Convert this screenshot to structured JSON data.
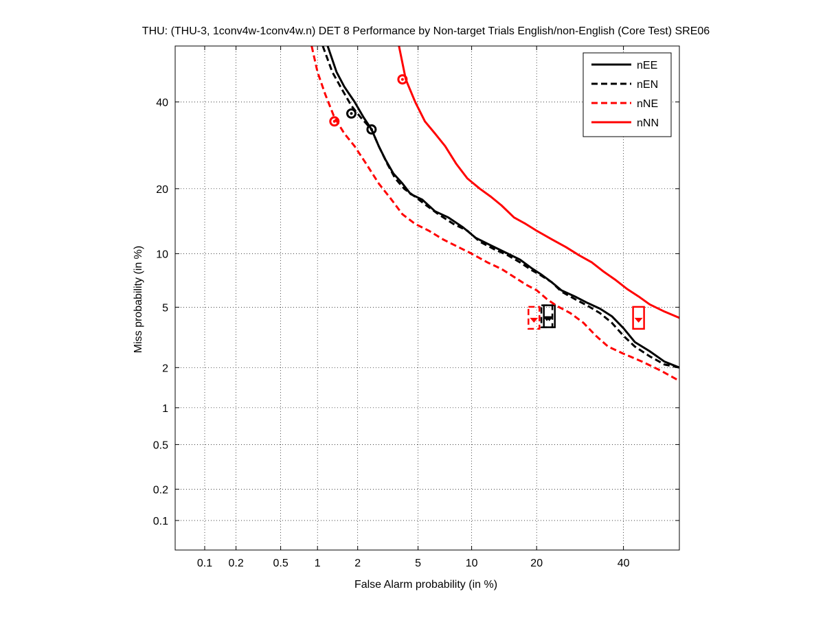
{
  "chart_data": {
    "type": "line",
    "title": "THU: (THU-3, 1conv4w-1conv4w.n) DET 8 Performance by Non-target Trials English/non-English (Core Test) SRE06",
    "xlabel": "False Alarm probability (in %)",
    "ylabel": "Miss probability (in %)",
    "x_scale": "normal-deviate (probit)",
    "y_scale": "normal-deviate (probit)",
    "xlim": [
      0.05,
      55
    ],
    "ylim": [
      0.05,
      55
    ],
    "x_ticks": [
      0.1,
      0.2,
      0.5,
      1,
      2,
      5,
      10,
      20,
      40
    ],
    "y_ticks": [
      0.1,
      0.2,
      0.5,
      1,
      2,
      5,
      10,
      20,
      40
    ],
    "x_tick_labels": [
      "0.1",
      "0.2",
      "0.5",
      "1",
      "2",
      "5",
      "10",
      "20",
      "40"
    ],
    "y_tick_labels": [
      "0.1",
      "0.2",
      "0.5",
      "1",
      "2",
      "5",
      "10",
      "20",
      "40"
    ],
    "grid": true,
    "legend_position": "top-right",
    "series": [
      {
        "name": "nEE",
        "color": "#000000",
        "dash": "solid",
        "points": [
          [
            1.2,
            55
          ],
          [
            1.4,
            48
          ],
          [
            1.6,
            44
          ],
          [
            1.9,
            40
          ],
          [
            2.2,
            36
          ],
          [
            2.5,
            33
          ],
          [
            2.8,
            29
          ],
          [
            3.1,
            26
          ],
          [
            3.5,
            23
          ],
          [
            4,
            21
          ],
          [
            4.5,
            19
          ],
          [
            5.3,
            18
          ],
          [
            6.3,
            16
          ],
          [
            7.5,
            15
          ],
          [
            9,
            13.5
          ],
          [
            10.5,
            12
          ],
          [
            12.5,
            11
          ],
          [
            15,
            10
          ],
          [
            17,
            9.3
          ],
          [
            19,
            8.4
          ],
          [
            21,
            7.7
          ],
          [
            23,
            7
          ],
          [
            25,
            6.3
          ],
          [
            28,
            5.8
          ],
          [
            31,
            5.3
          ],
          [
            34,
            4.9
          ],
          [
            37,
            4.4
          ],
          [
            40,
            3.7
          ],
          [
            43,
            3
          ],
          [
            47,
            2.6
          ],
          [
            51,
            2.2
          ],
          [
            55,
            2
          ]
        ],
        "act_dcf": [
          2.5,
          33
        ],
        "min_dcf": [
          22.5,
          4.4
        ]
      },
      {
        "name": "nEN",
        "color": "#000000",
        "dash": "dashed",
        "points": [
          [
            1.1,
            55
          ],
          [
            1.3,
            48
          ],
          [
            1.5,
            44
          ],
          [
            1.8,
            39
          ],
          [
            2.1,
            36
          ],
          [
            2.5,
            33
          ],
          [
            2.8,
            29
          ],
          [
            3.2,
            25
          ],
          [
            3.6,
            22
          ],
          [
            4.1,
            20
          ],
          [
            4.8,
            18.5
          ],
          [
            5.6,
            17
          ],
          [
            6.6,
            15.5
          ],
          [
            8,
            14
          ],
          [
            9.5,
            13
          ],
          [
            11,
            11.5
          ],
          [
            13,
            10.5
          ],
          [
            15,
            9.8
          ],
          [
            17,
            9
          ],
          [
            19,
            8.2
          ],
          [
            21,
            7.6
          ],
          [
            23,
            7
          ],
          [
            25,
            6.2
          ],
          [
            28,
            5.6
          ],
          [
            31,
            5.1
          ],
          [
            34,
            4.6
          ],
          [
            37,
            4
          ],
          [
            40,
            3.3
          ],
          [
            43,
            2.8
          ],
          [
            47,
            2.4
          ],
          [
            51,
            2.1
          ],
          [
            55,
            2
          ]
        ],
        "act_dcf": [
          1.8,
          37
        ],
        "min_dcf": [
          22,
          4.4
        ]
      },
      {
        "name": "nNE",
        "color": "#ff0000",
        "dash": "dashed",
        "points": [
          [
            0.9,
            55
          ],
          [
            1,
            48
          ],
          [
            1.15,
            42
          ],
          [
            1.35,
            36
          ],
          [
            1.6,
            32
          ],
          [
            1.9,
            29
          ],
          [
            2.3,
            25
          ],
          [
            2.8,
            21
          ],
          [
            3.4,
            18
          ],
          [
            4,
            15.5
          ],
          [
            4.8,
            14
          ],
          [
            5.8,
            13
          ],
          [
            7,
            11.8
          ],
          [
            8.5,
            10.8
          ],
          [
            10,
            10
          ],
          [
            12,
            9
          ],
          [
            14,
            8.3
          ],
          [
            16,
            7.5
          ],
          [
            18,
            6.8
          ],
          [
            20,
            6.3
          ],
          [
            22,
            5.6
          ],
          [
            24,
            5.1
          ],
          [
            27,
            4.6
          ],
          [
            30,
            4
          ],
          [
            33,
            3.3
          ],
          [
            36,
            2.8
          ],
          [
            40,
            2.5
          ],
          [
            45,
            2.2
          ],
          [
            50,
            1.9
          ],
          [
            55,
            1.6
          ]
        ],
        "act_dcf": [
          1.35,
          35
        ],
        "min_dcf": [
          19.5,
          4.3
        ]
      },
      {
        "name": "nNN",
        "color": "#ff0000",
        "dash": "solid",
        "points": [
          [
            3.8,
            55
          ],
          [
            4.2,
            46
          ],
          [
            4.8,
            40
          ],
          [
            5.5,
            35
          ],
          [
            6.3,
            32
          ],
          [
            7.2,
            29
          ],
          [
            8.3,
            25
          ],
          [
            9.5,
            22
          ],
          [
            11,
            20
          ],
          [
            12.5,
            18.5
          ],
          [
            14,
            17
          ],
          [
            16,
            15
          ],
          [
            18,
            14
          ],
          [
            20,
            13
          ],
          [
            23,
            11.8
          ],
          [
            26,
            10.8
          ],
          [
            29,
            9.8
          ],
          [
            32,
            9
          ],
          [
            35,
            8
          ],
          [
            38,
            7.2
          ],
          [
            41,
            6.4
          ],
          [
            44,
            5.8
          ],
          [
            47,
            5.2
          ],
          [
            51,
            4.7
          ],
          [
            55,
            4.3
          ]
        ],
        "act_dcf": [
          4,
          46
        ],
        "min_dcf": [
          44,
          4.3
        ]
      }
    ]
  }
}
